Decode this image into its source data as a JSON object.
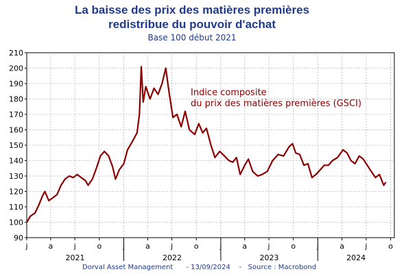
{
  "header": {
    "title_line1": "La baisse des prix des matières premières",
    "title_line2": "redistribue du pouvoir d'achat",
    "subtitle": "Base 100 début 2021"
  },
  "footer": {
    "source": "Dorval Asset Management      - 13/09/2024    -   Source : Macrobond"
  },
  "chart_data": {
    "type": "line",
    "title": "La baisse des prix des matières premières redistribue du pouvoir d'achat",
    "subtitle": "Base 100 début 2021",
    "ylim": [
      90,
      210
    ],
    "yticks": [
      90,
      100,
      110,
      120,
      130,
      140,
      150,
      160,
      170,
      180,
      190,
      200,
      210
    ],
    "xlim": [
      "2021-01-01",
      "2024-10-15"
    ],
    "month_ticks": [
      "j",
      "a",
      "j",
      "o",
      "j",
      "a",
      "j",
      "o",
      "j",
      "a",
      "j",
      "o",
      "j",
      "a",
      "j",
      "o"
    ],
    "year_labels": [
      "2021",
      "2022",
      "2023",
      "2024"
    ],
    "grid": true,
    "annotation": "Indice composite\ndu prix des matières premières (GSCI)",
    "line_color": "#8b0000",
    "series": [
      {
        "name": "Indice composite du prix des matières premières (GSCI)",
        "points": [
          [
            "2021-01-01",
            100
          ],
          [
            "2021-01-15",
            104
          ],
          [
            "2021-02-01",
            106
          ],
          [
            "2021-02-15",
            111
          ],
          [
            "2021-03-01",
            117
          ],
          [
            "2021-03-10",
            120
          ],
          [
            "2021-03-25",
            114
          ],
          [
            "2021-04-10",
            116
          ],
          [
            "2021-04-25",
            118
          ],
          [
            "2021-05-10",
            124
          ],
          [
            "2021-05-25",
            128
          ],
          [
            "2021-06-10",
            130
          ],
          [
            "2021-06-25",
            129
          ],
          [
            "2021-07-10",
            131
          ],
          [
            "2021-07-25",
            129
          ],
          [
            "2021-08-10",
            127
          ],
          [
            "2021-08-20",
            124
          ],
          [
            "2021-09-05",
            128
          ],
          [
            "2021-09-20",
            135
          ],
          [
            "2021-10-05",
            143
          ],
          [
            "2021-10-20",
            146
          ],
          [
            "2021-11-05",
            143
          ],
          [
            "2021-11-20",
            136
          ],
          [
            "2021-12-01",
            128
          ],
          [
            "2021-12-15",
            134
          ],
          [
            "2022-01-01",
            138
          ],
          [
            "2022-01-15",
            147
          ],
          [
            "2022-02-01",
            152
          ],
          [
            "2022-02-20",
            158
          ],
          [
            "2022-03-01",
            170
          ],
          [
            "2022-03-08",
            201
          ],
          [
            "2022-03-15",
            178
          ],
          [
            "2022-03-25",
            188
          ],
          [
            "2022-04-10",
            180
          ],
          [
            "2022-04-25",
            187
          ],
          [
            "2022-05-10",
            183
          ],
          [
            "2022-05-25",
            190
          ],
          [
            "2022-06-08",
            200
          ],
          [
            "2022-06-20",
            185
          ],
          [
            "2022-07-05",
            168
          ],
          [
            "2022-07-20",
            170
          ],
          [
            "2022-08-05",
            162
          ],
          [
            "2022-08-20",
            172
          ],
          [
            "2022-09-05",
            160
          ],
          [
            "2022-09-25",
            157
          ],
          [
            "2022-10-10",
            164
          ],
          [
            "2022-10-25",
            158
          ],
          [
            "2022-11-08",
            161
          ],
          [
            "2022-11-25",
            150
          ],
          [
            "2022-12-10",
            142
          ],
          [
            "2022-12-28",
            146
          ],
          [
            "2023-01-15",
            143
          ],
          [
            "2023-02-01",
            140
          ],
          [
            "2023-02-15",
            139
          ],
          [
            "2023-03-01",
            142
          ],
          [
            "2023-03-15",
            131
          ],
          [
            "2023-04-01",
            137
          ],
          [
            "2023-04-15",
            141
          ],
          [
            "2023-05-01",
            133
          ],
          [
            "2023-05-20",
            130
          ],
          [
            "2023-06-05",
            131
          ],
          [
            "2023-06-25",
            133
          ],
          [
            "2023-07-15",
            140
          ],
          [
            "2023-08-05",
            144
          ],
          [
            "2023-08-25",
            143
          ],
          [
            "2023-09-15",
            149
          ],
          [
            "2023-09-28",
            151
          ],
          [
            "2023-10-10",
            145
          ],
          [
            "2023-10-25",
            144
          ],
          [
            "2023-11-10",
            137
          ],
          [
            "2023-11-25",
            138
          ],
          [
            "2023-12-10",
            129
          ],
          [
            "2023-12-25",
            131
          ],
          [
            "2024-01-10",
            134
          ],
          [
            "2024-01-25",
            137
          ],
          [
            "2024-02-10",
            137
          ],
          [
            "2024-02-25",
            140
          ],
          [
            "2024-03-15",
            142
          ],
          [
            "2024-04-05",
            147
          ],
          [
            "2024-04-20",
            145
          ],
          [
            "2024-05-05",
            140
          ],
          [
            "2024-05-20",
            138
          ],
          [
            "2024-06-05",
            143
          ],
          [
            "2024-06-20",
            141
          ],
          [
            "2024-07-05",
            137
          ],
          [
            "2024-07-20",
            133
          ],
          [
            "2024-08-05",
            129
          ],
          [
            "2024-08-20",
            131
          ],
          [
            "2024-09-05",
            124
          ],
          [
            "2024-09-13",
            126
          ]
        ]
      }
    ]
  }
}
